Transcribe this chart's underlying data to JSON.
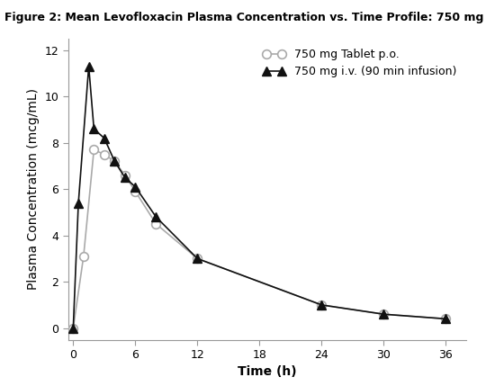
{
  "title": "Figure 2: Mean Levofloxacin Plasma Concentration vs. Time Profile: 750 mg",
  "xlabel": "Time (h)",
  "ylabel": "Plasma Concentration (mcg/mL)",
  "xlim": [
    -0.5,
    38
  ],
  "ylim": [
    -0.5,
    12.5
  ],
  "xticks": [
    0,
    6,
    12,
    18,
    24,
    30,
    36
  ],
  "yticks": [
    0,
    2,
    4,
    6,
    8,
    10,
    12
  ],
  "tablet_x": [
    0,
    1,
    2,
    3,
    4,
    5,
    6,
    8,
    12,
    24,
    30,
    36
  ],
  "tablet_y": [
    0.0,
    3.1,
    7.7,
    7.5,
    7.2,
    6.6,
    5.9,
    4.5,
    3.0,
    1.0,
    0.6,
    0.4
  ],
  "tablet_label": "750 mg Tablet p.o.",
  "tablet_color": "#aaaaaa",
  "tablet_marker": "o",
  "tablet_markersize": 7,
  "tablet_linewidth": 1.2,
  "iv_x": [
    0,
    0.5,
    1.5,
    2,
    3,
    4,
    5,
    6,
    8,
    12,
    24,
    30,
    36
  ],
  "iv_y": [
    0.0,
    5.4,
    11.3,
    8.6,
    8.2,
    7.2,
    6.5,
    6.1,
    4.8,
    3.0,
    1.0,
    0.6,
    0.4
  ],
  "iv_label": "750 mg i.v. (90 min infusion)",
  "iv_color": "#111111",
  "iv_marker": "^",
  "iv_markersize": 7,
  "iv_linewidth": 1.2,
  "background_color": "#ffffff",
  "title_fontsize": 9,
  "axis_label_fontsize": 10,
  "tick_fontsize": 9,
  "legend_fontsize": 9
}
